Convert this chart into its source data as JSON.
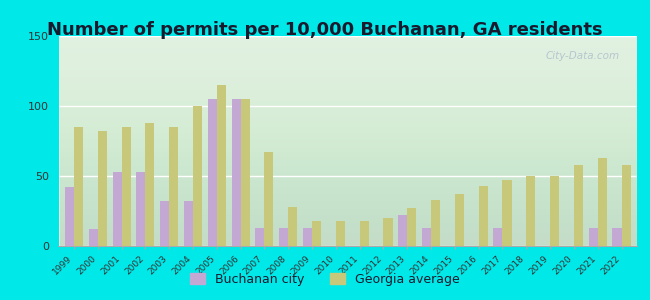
{
  "title": "Number of permits per 10,000 Buchanan, GA residents",
  "years": [
    1999,
    2000,
    2001,
    2002,
    2003,
    2004,
    2005,
    2006,
    2007,
    2008,
    2009,
    2010,
    2011,
    2012,
    2013,
    2014,
    2015,
    2016,
    2017,
    2018,
    2019,
    2020,
    2021,
    2022
  ],
  "buchanan": [
    42,
    12,
    53,
    53,
    32,
    32,
    105,
    105,
    13,
    13,
    13,
    0,
    0,
    0,
    22,
    13,
    0,
    0,
    13,
    0,
    0,
    0,
    13,
    13
  ],
  "georgia": [
    85,
    82,
    85,
    88,
    85,
    100,
    115,
    105,
    67,
    28,
    18,
    18,
    18,
    20,
    27,
    33,
    37,
    43,
    47,
    50,
    50,
    58,
    63,
    58
  ],
  "buchanan_color": "#c4a8d4",
  "georgia_color": "#c8c87a",
  "plot_bg_color": "#dff0df",
  "outer_bg": "#00e8e8",
  "ylim": [
    0,
    150
  ],
  "yticks": [
    0,
    50,
    100,
    150
  ],
  "title_fontsize": 13,
  "legend_label_buchanan": "Buchanan city",
  "legend_label_georgia": "Georgia average",
  "watermark": "City-Data.com"
}
